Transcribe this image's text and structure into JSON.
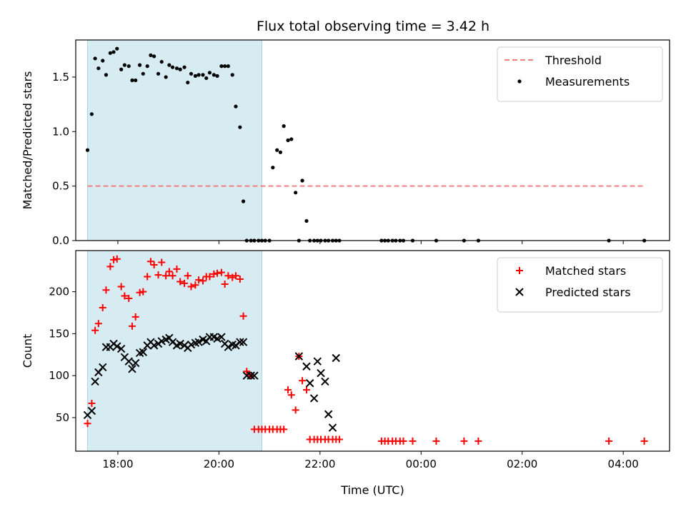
{
  "chart_data": [
    {
      "type": "scatter",
      "title": "Flux total observing time = 3.42 h",
      "xlabel": "",
      "ylabel": "Matched/Predicted stars",
      "xlim": [
        "17:10",
        "04:55"
      ],
      "ylim": [
        0,
        1.84
      ],
      "yticks": [
        0.0,
        0.5,
        1.0,
        1.5
      ],
      "ytick_labels": [
        "0.0",
        "0.5",
        "1.0",
        "1.5"
      ],
      "shaded_interval": {
        "start": "17:24",
        "end": "20:51",
        "color": "#add8e6"
      },
      "legend_position": "upper right",
      "threshold": {
        "name": "Threshold",
        "value": 0.5,
        "x_start": "17:24",
        "x_end": "04:25",
        "color": "#f08080",
        "style": "dashed"
      },
      "series": [
        {
          "name": "Measurements",
          "color": "#000000",
          "marker": "dot",
          "x": [
            "17:24",
            "17:29",
            "17:33",
            "17:37",
            "17:42",
            "17:46",
            "17:51",
            "17:55",
            "17:59",
            "18:04",
            "18:08",
            "18:13",
            "18:17",
            "18:21",
            "18:26",
            "18:30",
            "18:35",
            "18:39",
            "18:43",
            "18:48",
            "18:52",
            "18:57",
            "19:01",
            "19:05",
            "19:10",
            "19:14",
            "19:19",
            "19:23",
            "19:27",
            "19:32",
            "19:36",
            "19:41",
            "19:45",
            "19:49",
            "19:54",
            "19:58",
            "20:03",
            "20:07",
            "20:11",
            "20:16",
            "20:20",
            "20:25",
            "20:29",
            "20:33",
            "20:38",
            "20:42",
            "20:47",
            "20:51",
            "20:55",
            "21:00",
            "21:04",
            "21:09",
            "21:13",
            "21:17",
            "21:22",
            "21:26",
            "21:31",
            "21:35",
            "21:39",
            "21:44",
            "21:48",
            "21:53",
            "21:57",
            "22:01",
            "22:06",
            "22:10",
            "22:15",
            "22:19",
            "22:23",
            "23:13",
            "23:17",
            "23:21",
            "23:26",
            "23:30",
            "23:35",
            "23:39",
            "23:50",
            "00:18",
            "00:51",
            "01:08",
            "03:43",
            "04:25"
          ],
          "y": [
            0.83,
            1.16,
            1.67,
            1.58,
            1.65,
            1.52,
            1.72,
            1.73,
            1.76,
            1.57,
            1.61,
            1.6,
            1.47,
            1.47,
            1.61,
            1.53,
            1.6,
            1.7,
            1.69,
            1.53,
            1.64,
            1.5,
            1.61,
            1.59,
            1.58,
            1.57,
            1.59,
            1.45,
            1.53,
            1.51,
            1.52,
            1.52,
            1.49,
            1.54,
            1.52,
            1.51,
            1.6,
            1.6,
            1.6,
            1.52,
            1.23,
            1.04,
            0.36,
            0.0,
            0.0,
            0.0,
            0.0,
            0.0,
            0.0,
            0.0,
            0.67,
            0.83,
            0.81,
            1.05,
            0.92,
            0.93,
            0.44,
            0.0,
            0.55,
            0.18,
            0.0,
            0.0,
            0.0,
            0.0,
            0.0,
            0.0,
            0.0,
            0.0,
            0.0,
            0.0,
            0.0,
            0.0,
            0.0,
            0.0,
            0.0,
            0.0,
            0.0,
            0.0,
            0.0,
            0.0,
            0.0,
            0.0
          ]
        }
      ]
    },
    {
      "type": "scatter",
      "title": "",
      "xlabel": "Time (UTC)",
      "ylabel": "Count",
      "xlim": [
        "17:10",
        "04:55"
      ],
      "ylim": [
        10,
        249
      ],
      "yticks": [
        50,
        100,
        150,
        200
      ],
      "ytick_labels": [
        "50",
        "100",
        "150",
        "200"
      ],
      "xticks": [
        "18:00",
        "20:00",
        "22:00",
        "00:00",
        "02:00",
        "04:00"
      ],
      "shaded_interval": {
        "start": "17:24",
        "end": "20:51",
        "color": "#add8e6"
      },
      "legend_position": "upper right",
      "series": [
        {
          "name": "Matched stars",
          "color": "#ff0000",
          "marker": "plus",
          "x": [
            "17:24",
            "17:29",
            "17:33",
            "17:37",
            "17:42",
            "17:46",
            "17:51",
            "17:55",
            "17:59",
            "18:04",
            "18:08",
            "18:13",
            "18:17",
            "18:21",
            "18:26",
            "18:30",
            "18:35",
            "18:39",
            "18:43",
            "18:48",
            "18:52",
            "18:57",
            "19:01",
            "19:05",
            "19:10",
            "19:14",
            "19:19",
            "19:23",
            "19:27",
            "19:32",
            "19:36",
            "19:41",
            "19:45",
            "19:49",
            "19:54",
            "19:58",
            "20:03",
            "20:07",
            "20:11",
            "20:16",
            "20:20",
            "20:25",
            "20:29",
            "20:33",
            "20:38",
            "20:42",
            "20:47",
            "20:51",
            "20:55",
            "21:00",
            "21:04",
            "21:09",
            "21:13",
            "21:17",
            "21:22",
            "21:26",
            "21:31",
            "21:35",
            "21:39",
            "21:44",
            "21:48",
            "21:53",
            "21:57",
            "22:01",
            "22:06",
            "22:10",
            "22:15",
            "22:19",
            "22:23",
            "23:13",
            "23:17",
            "23:21",
            "23:26",
            "23:30",
            "23:35",
            "23:39",
            "23:50",
            "00:18",
            "00:51",
            "01:08",
            "03:43",
            "04:25"
          ],
          "y": [
            43,
            67,
            154,
            162,
            181,
            202,
            230,
            238,
            239,
            206,
            195,
            192,
            159,
            170,
            199,
            200,
            218,
            236,
            232,
            220,
            235,
            219,
            224,
            219,
            227,
            212,
            210,
            219,
            206,
            208,
            214,
            213,
            218,
            218,
            221,
            222,
            223,
            209,
            219,
            217,
            219,
            215,
            171,
            105,
            100,
            36,
            36,
            36,
            36,
            36,
            36,
            36,
            36,
            36,
            83,
            77,
            59,
            123,
            94,
            83,
            24,
            24,
            24,
            24,
            24,
            24,
            24,
            24,
            24,
            22,
            22,
            22,
            22,
            22,
            22,
            22,
            22,
            22,
            22,
            22,
            22,
            22
          ]
        },
        {
          "name": "Predicted stars",
          "color": "#000000",
          "marker": "x",
          "x": [
            "17:24",
            "17:29",
            "17:33",
            "17:37",
            "17:42",
            "17:46",
            "17:51",
            "17:55",
            "17:59",
            "18:04",
            "18:08",
            "18:13",
            "18:17",
            "18:21",
            "18:26",
            "18:30",
            "18:35",
            "18:39",
            "18:43",
            "18:48",
            "18:52",
            "18:57",
            "19:01",
            "19:05",
            "19:10",
            "19:14",
            "19:19",
            "19:23",
            "19:27",
            "19:32",
            "19:36",
            "19:41",
            "19:45",
            "19:49",
            "19:54",
            "19:58",
            "20:03",
            "20:07",
            "20:11",
            "20:16",
            "20:20",
            "20:25",
            "20:29",
            "20:33",
            "20:38",
            "20:42",
            "21:35",
            "21:44",
            "21:48",
            "21:53",
            "21:57",
            "22:01",
            "22:06",
            "22:10",
            "22:15"
          ],
          "y": [
            53,
            58,
            93,
            104,
            110,
            134,
            134,
            138,
            135,
            132,
            122,
            117,
            108,
            115,
            127,
            128,
            136,
            140,
            136,
            138,
            141,
            143,
            145,
            140,
            136,
            138,
            136,
            133,
            137,
            139,
            140,
            143,
            141,
            146,
            146,
            144,
            146,
            138,
            134,
            137,
            136,
            140,
            140,
            100,
            100,
            100,
            123,
            111,
            91,
            73,
            117,
            103,
            93,
            54,
            38
          ]
        },
        {
          "name": "",
          "color": "#000000",
          "marker": "x",
          "x": [
            "22:19"
          ],
          "y": [
            121
          ]
        }
      ],
      "legend_series": [
        "Matched stars",
        "Predicted stars"
      ]
    }
  ]
}
